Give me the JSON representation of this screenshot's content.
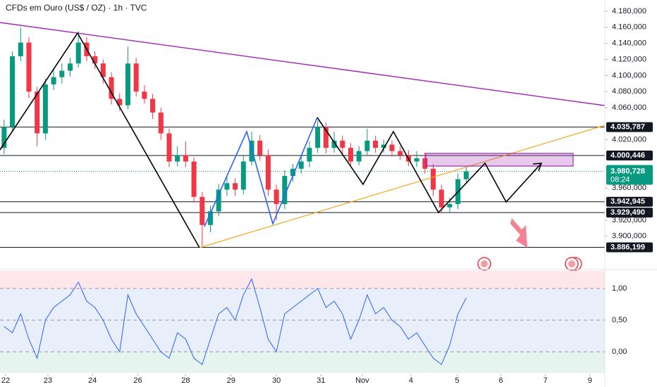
{
  "chart_data": [
    {
      "type": "candlestick",
      "title": "CFDs em Ouro (US$ / OZ) · 1h · TVC",
      "up_color": "#089981",
      "down_color": "#f23645",
      "ylim": [
        3870,
        4194
      ],
      "xlim": [
        -0.5,
        72.8
      ],
      "yticks": [
        {
          "value": 4180,
          "label": "4.180,000"
        },
        {
          "value": 4160,
          "label": "4.160,000"
        },
        {
          "value": 4140,
          "label": "4.140,000"
        },
        {
          "value": 4120,
          "label": "4.120,000"
        },
        {
          "value": 4100,
          "label": "4.100,000"
        },
        {
          "value": 4080,
          "label": "4.080,000"
        },
        {
          "value": 4060,
          "label": "4.060,000"
        },
        {
          "value": 4020,
          "label": "4.020,000"
        },
        {
          "value": 3960,
          "label": "3.960,000"
        },
        {
          "value": 3920,
          "label": "3.920,000"
        },
        {
          "value": 3900,
          "label": "3.900,000"
        }
      ],
      "xticks": [
        {
          "value": 0.18,
          "label": "22"
        },
        {
          "value": 5.3,
          "label": "23"
        },
        {
          "value": 10.7,
          "label": "24"
        },
        {
          "value": 16.2,
          "label": "26"
        },
        {
          "value": 22,
          "label": "28"
        },
        {
          "value": 27.5,
          "label": "29"
        },
        {
          "value": 33,
          "label": "30"
        },
        {
          "value": 38.4,
          "label": "31"
        },
        {
          "value": 43.4,
          "label": "Nov"
        },
        {
          "value": 49.3,
          "label": "4"
        },
        {
          "value": 54.9,
          "label": "5"
        },
        {
          "value": 60.2,
          "label": "6"
        },
        {
          "value": 65.6,
          "label": "7"
        },
        {
          "value": 71,
          "label": "9"
        }
      ],
      "levels": [
        {
          "value": 4035.787,
          "label": "4.035,787"
        },
        {
          "value": 4000.446,
          "label": "4.000,446"
        },
        {
          "value": 3942.945,
          "label": "3.942,945"
        },
        {
          "value": 3929.49,
          "label": "3.929,490"
        },
        {
          "value": 3886.199,
          "label": "3.886,199"
        }
      ],
      "last_price": {
        "value": 3980.728,
        "label": "3.980,728",
        "countdown": "08:24"
      },
      "ohlc": [
        [
          4010,
          4045,
          4002,
          4036
        ],
        [
          4036,
          4130,
          4030,
          4124
        ],
        [
          4124,
          4160,
          4118,
          4141
        ],
        [
          4141,
          4148,
          4072,
          4080
        ],
        [
          4080,
          4086,
          4012,
          4028
        ],
        [
          4028,
          4096,
          4020,
          4089
        ],
        [
          4089,
          4108,
          4082,
          4098
        ],
        [
          4098,
          4115,
          4090,
          4106
        ],
        [
          4106,
          4122,
          4099,
          4115
        ],
        [
          4115,
          4155,
          4110,
          4141
        ],
        [
          4141,
          4148,
          4118,
          4124
        ],
        [
          4124,
          4130,
          4108,
          4115
        ],
        [
          4115,
          4120,
          4090,
          4098
        ],
        [
          4098,
          4104,
          4064,
          4071
        ],
        [
          4071,
          4078,
          4056,
          4063
        ],
        [
          4063,
          4136,
          4058,
          4115
        ],
        [
          4115,
          4122,
          4074,
          4080
        ],
        [
          4080,
          4088,
          4065,
          4071
        ],
        [
          4071,
          4077,
          4046,
          4054
        ],
        [
          4054,
          4060,
          4020,
          4028
        ],
        [
          4028,
          4034,
          3986,
          3993
        ],
        [
          3993,
          4012,
          3987,
          4001
        ],
        [
          4001,
          4018,
          3986,
          3993
        ],
        [
          3993,
          3998,
          3942,
          3949
        ],
        [
          3949,
          3955,
          3888,
          3914
        ],
        [
          3914,
          3938,
          3905,
          3931
        ],
        [
          3931,
          3965,
          3925,
          3958
        ],
        [
          3958,
          3974,
          3950,
          3966
        ],
        [
          3966,
          3972,
          3950,
          3958
        ],
        [
          3958,
          4000,
          3952,
          3993
        ],
        [
          3993,
          4030,
          3988,
          4019
        ],
        [
          4019,
          4026,
          3994,
          4001
        ],
        [
          4001,
          4008,
          3950,
          3958
        ],
        [
          3958,
          3964,
          3920,
          3940
        ],
        [
          3940,
          3982,
          3934,
          3975
        ],
        [
          3975,
          3990,
          3968,
          3984
        ],
        [
          3984,
          4000,
          3978,
          3993
        ],
        [
          3993,
          4018,
          3986,
          4010
        ],
        [
          4010,
          4044,
          4004,
          4036
        ],
        [
          4036,
          4042,
          4003,
          4010
        ],
        [
          4010,
          4030,
          4004,
          4019
        ],
        [
          4019,
          4025,
          4002,
          4010
        ],
        [
          4010,
          4016,
          3986,
          3993
        ],
        [
          3993,
          4012,
          3988,
          4006
        ],
        [
          4006,
          4034,
          4000,
          4019
        ],
        [
          4019,
          4025,
          4004,
          4010
        ],
        [
          4010,
          4020,
          4004,
          4014
        ],
        [
          4014,
          4019,
          3999,
          4006
        ],
        [
          4006,
          4012,
          3995,
          4001
        ],
        [
          4001,
          4007,
          3987,
          3993
        ],
        [
          3993,
          4006,
          3986,
          3997
        ],
        [
          3997,
          4004,
          3978,
          3984
        ],
        [
          3984,
          3990,
          3950,
          3958
        ],
        [
          3958,
          3964,
          3930,
          3936
        ],
        [
          3936,
          3948,
          3929,
          3940
        ],
        [
          3940,
          3978,
          3934,
          3971
        ],
        [
          3971,
          3986,
          3965,
          3980.728
        ]
      ]
    },
    {
      "type": "line",
      "color": "#2962ff",
      "ylim": [
        -0.333,
        1.278
      ],
      "yticks": [
        {
          "value": 1,
          "label": "1,00"
        },
        {
          "value": 0.5,
          "label": "0,50"
        },
        {
          "value": 0,
          "label": "0,00"
        }
      ],
      "values": [
        0.4,
        0.3,
        0.6,
        0.2,
        -0.1,
        0.5,
        0.7,
        0.8,
        0.9,
        1.1,
        0.8,
        0.7,
        0.5,
        0.2,
        0.0,
        0.9,
        0.6,
        0.4,
        0.2,
        0.0,
        -0.1,
        0.3,
        0.2,
        -0.1,
        -0.2,
        0.2,
        0.6,
        0.7,
        0.5,
        0.9,
        1.15,
        0.7,
        0.2,
        0.0,
        0.6,
        0.7,
        0.8,
        0.9,
        1.0,
        0.7,
        0.8,
        0.6,
        0.2,
        0.5,
        0.9,
        0.6,
        0.7,
        0.5,
        0.4,
        0.2,
        0.3,
        0.1,
        -0.1,
        -0.2,
        0.1,
        0.6,
        0.85
      ]
    }
  ]
}
